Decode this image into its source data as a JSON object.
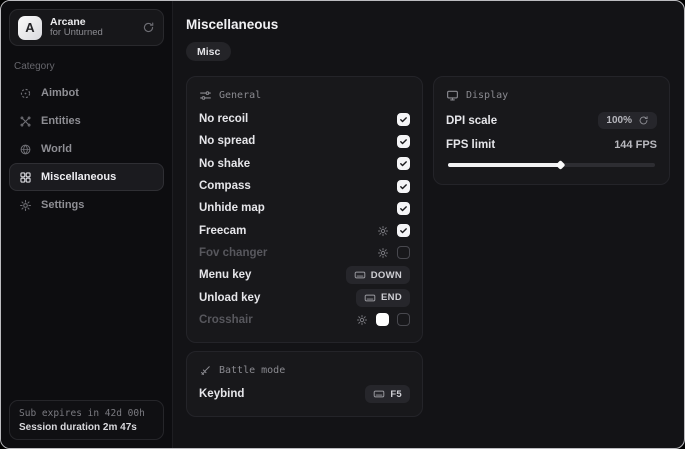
{
  "colors": {
    "checkbox_checked": "#f5f5f7",
    "crosshair_swatch": "#ffffff",
    "slider_fill": "#f1f1f3"
  },
  "sidebar": {
    "brand": {
      "avatar_letter": "A",
      "name": "Arcane",
      "subtitle": "for Unturned",
      "action_icon": "refresh-icon"
    },
    "category_label": "Category",
    "items": [
      {
        "label": "Aimbot",
        "icon": "crosshair-icon",
        "active": false
      },
      {
        "label": "Entities",
        "icon": "entities-icon",
        "active": false
      },
      {
        "label": "World",
        "icon": "globe-icon",
        "active": false
      },
      {
        "label": "Miscellaneous",
        "icon": "grid-icon",
        "active": true
      },
      {
        "label": "Settings",
        "icon": "gear-icon",
        "active": false
      }
    ],
    "footer": {
      "line1": "Sub expires in 42d 00h",
      "line2": "Session duration 2m 47s"
    }
  },
  "main": {
    "title": "Miscellaneous",
    "tabs": [
      {
        "label": "Misc",
        "active": true
      }
    ]
  },
  "sections": {
    "general": {
      "title": "General",
      "icon": "sliders-icon",
      "rows": [
        {
          "label": "No recoil",
          "checked": true,
          "disabled": false
        },
        {
          "label": "No spread",
          "checked": true,
          "disabled": false
        },
        {
          "label": "No shake",
          "checked": true,
          "disabled": false
        },
        {
          "label": "Compass",
          "checked": true,
          "disabled": false
        },
        {
          "label": "Unhide map",
          "checked": true,
          "disabled": false
        },
        {
          "label": "Freecam",
          "checked": true,
          "disabled": false,
          "has_settings": true
        },
        {
          "label": "Fov changer",
          "checked": false,
          "disabled": true,
          "has_settings": true
        },
        {
          "label": "Menu key",
          "key": "DOWN"
        },
        {
          "label": "Unload key",
          "key": "END"
        },
        {
          "label": "Crosshair",
          "checked": false,
          "disabled": true,
          "has_settings": true,
          "swatch": "#ffffff"
        }
      ]
    },
    "display": {
      "title": "Display",
      "icon": "monitor-icon",
      "dpi": {
        "label": "DPI scale",
        "value": "100%"
      },
      "fps": {
        "label": "FPS limit",
        "value": "144 FPS",
        "percent": 54
      }
    },
    "battle": {
      "title": "Battle mode",
      "icon": "sword-icon",
      "rows": [
        {
          "label": "Keybind",
          "key": "F5"
        }
      ]
    }
  }
}
